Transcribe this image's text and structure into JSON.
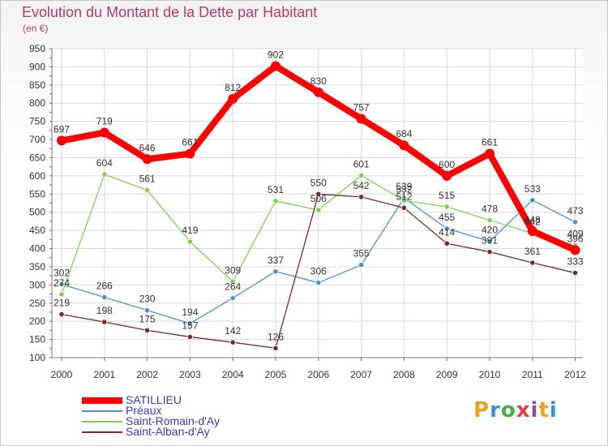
{
  "title": "Evolution du Montant de la Dette par Habitant",
  "unit_label": "(en €)",
  "brand": "Proxiti",
  "brand_colors": [
    "#f0a020",
    "#3a8fd0",
    "#40b040",
    "#e04040",
    "#8a4ab0",
    "#f0a020",
    "#3a8fd0"
  ],
  "chart_data": {
    "type": "line",
    "categories": [
      "2000",
      "2001",
      "2002",
      "2003",
      "2004",
      "2005",
      "2006",
      "2007",
      "2008",
      "2009",
      "2010",
      "2011",
      "2012"
    ],
    "ylim": [
      100,
      950
    ],
    "yticks": [
      100,
      150,
      200,
      250,
      300,
      350,
      400,
      450,
      500,
      550,
      600,
      650,
      700,
      750,
      800,
      850,
      900,
      950
    ],
    "grid": true,
    "legend_position": "bottom-left",
    "series": [
      {
        "name": "SATILLIEU",
        "color": "#ff0000",
        "values": [
          697,
          719,
          646,
          661,
          812,
          902,
          830,
          757,
          684,
          600,
          661,
          448,
          396
        ]
      },
      {
        "name": "Préaux",
        "color": "#4a8fd0",
        "values": [
          302,
          266,
          230,
          194,
          264,
          337,
          306,
          355,
          539,
          455,
          420,
          533,
          473
        ]
      },
      {
        "name": "Saint-Romain-d'Ay",
        "color": "#7ed050",
        "values": [
          274,
          604,
          561,
          419,
          309,
          531,
          506,
          601,
          532,
          515,
          478,
          442,
          409
        ]
      },
      {
        "name": "Saint-Alban-d'Ay",
        "color": "#7a2a2a",
        "values": [
          219,
          198,
          175,
          157,
          142,
          126,
          550,
          542,
          512,
          414,
          391,
          361,
          333
        ]
      }
    ]
  }
}
